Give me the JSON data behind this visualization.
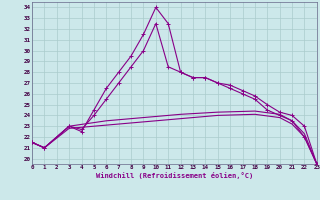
{
  "xlabel": "Windchill (Refroidissement éolien,°C)",
  "bg_color": "#cce8ea",
  "grid_color": "#aacccc",
  "line_color": "#880088",
  "xlim": [
    0,
    23
  ],
  "ylim": [
    19.5,
    34.5
  ],
  "ytick_vals": [
    20,
    21,
    22,
    23,
    24,
    25,
    26,
    27,
    28,
    29,
    30,
    31,
    32,
    33,
    34
  ],
  "xtick_vals": [
    0,
    1,
    2,
    3,
    4,
    5,
    6,
    7,
    8,
    9,
    10,
    11,
    12,
    13,
    14,
    15,
    16,
    17,
    18,
    19,
    20,
    21,
    22,
    23
  ],
  "line1_x": [
    0,
    1,
    3,
    4,
    5,
    6,
    7,
    8,
    9,
    10,
    11,
    12,
    13,
    14,
    15,
    16,
    17,
    18,
    19,
    20,
    21,
    22,
    23
  ],
  "line1_y": [
    21.5,
    21.0,
    23.0,
    22.5,
    24.5,
    26.5,
    28.0,
    29.5,
    31.5,
    34.0,
    32.5,
    28.0,
    27.5,
    27.5,
    27.0,
    26.5,
    26.0,
    25.5,
    24.5,
    24.0,
    23.5,
    22.0,
    19.5
  ],
  "line2_x": [
    0,
    1,
    3,
    4,
    5,
    6,
    7,
    8,
    9,
    10,
    11,
    12,
    13,
    14,
    15,
    16,
    17,
    18,
    19,
    20,
    21,
    22,
    23
  ],
  "line2_y": [
    21.5,
    21.0,
    23.0,
    22.7,
    24.0,
    25.5,
    27.0,
    28.5,
    30.0,
    32.5,
    28.5,
    28.0,
    27.5,
    27.5,
    27.0,
    26.8,
    26.3,
    25.8,
    25.0,
    24.3,
    24.0,
    23.0,
    19.5
  ],
  "line3_x": [
    0,
    1,
    3,
    6,
    9,
    12,
    15,
    18,
    20,
    21,
    22,
    23
  ],
  "line3_y": [
    21.5,
    21.0,
    23.0,
    23.5,
    23.8,
    24.1,
    24.3,
    24.4,
    24.1,
    23.5,
    22.3,
    19.5
  ],
  "line4_x": [
    0,
    1,
    3,
    6,
    9,
    12,
    15,
    18,
    20,
    21,
    22,
    23
  ],
  "line4_y": [
    21.5,
    21.0,
    22.8,
    23.1,
    23.4,
    23.7,
    24.0,
    24.1,
    23.8,
    23.2,
    22.0,
    19.5
  ]
}
